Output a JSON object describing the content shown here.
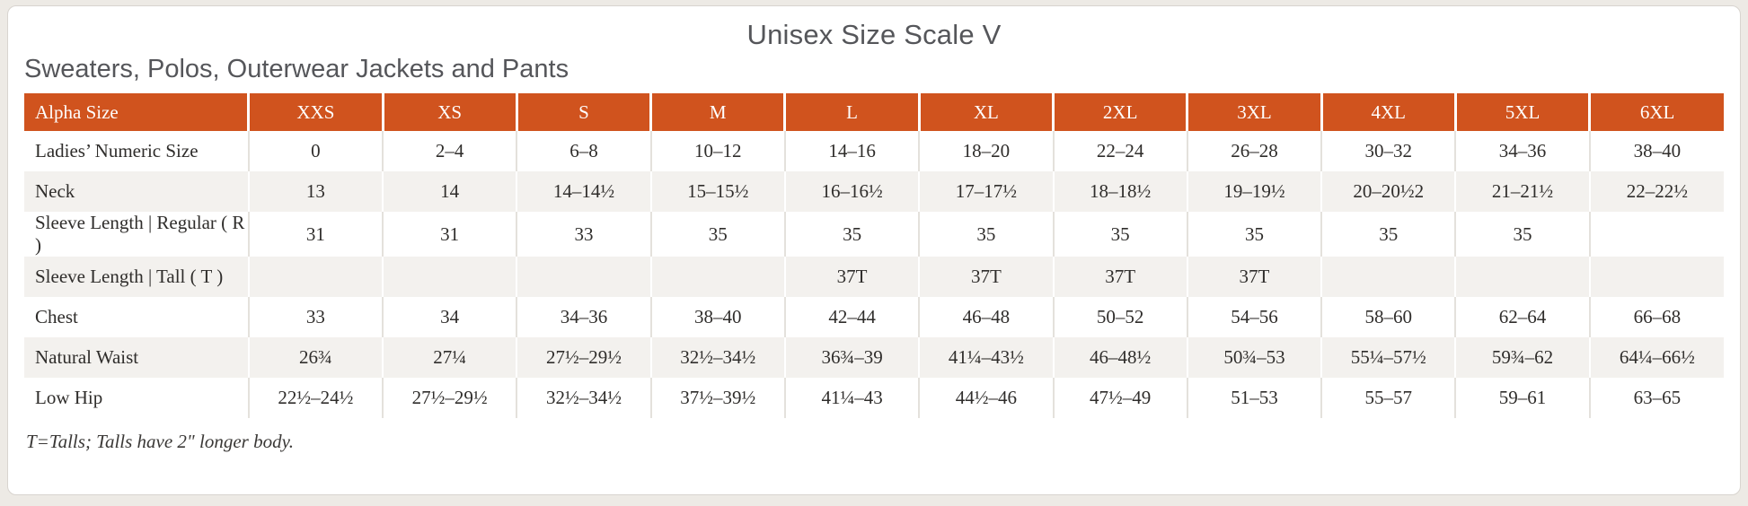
{
  "page": {
    "title": "Unisex Size Scale V",
    "subtitle": "Sweaters, Polos, Outerwear Jackets and Pants",
    "footnote": "T=Talls; Talls have 2\" longer body."
  },
  "colors": {
    "header_bg": "#D0531E",
    "alt_row_bg": "#F3F1EE",
    "title_text": "#55565A",
    "body_text": "#2F2D2B"
  },
  "table": {
    "columns": [
      "Alpha Size",
      "XXS",
      "XS",
      "S",
      "M",
      "L",
      "XL",
      "2XL",
      "3XL",
      "4XL",
      "5XL",
      "6XL"
    ],
    "rows": [
      {
        "label": "Ladies’ Numeric Size",
        "values": [
          "0",
          "2–4",
          "6–8",
          "10–12",
          "14–16",
          "18–20",
          "22–24",
          "26–28",
          "30–32",
          "34–36",
          "38–40"
        ]
      },
      {
        "label": "Neck",
        "values": [
          "13",
          "14",
          "14–14½",
          "15–15½",
          "16–16½",
          "17–17½",
          "18–18½",
          "19–19½",
          "20–20½2",
          "21–21½",
          "22–22½"
        ]
      },
      {
        "label": "Sleeve Length | Regular ( R )",
        "values": [
          "31",
          "31",
          "33",
          "35",
          "35",
          "35",
          "35",
          "35",
          "35",
          "35",
          ""
        ]
      },
      {
        "label": "Sleeve Length | Tall ( T )",
        "values": [
          "",
          "",
          "",
          "",
          "37T",
          "37T",
          "37T",
          "37T",
          "",
          "",
          ""
        ]
      },
      {
        "label": "Chest",
        "values": [
          "33",
          "34",
          "34–36",
          "38–40",
          "42–44",
          "46–48",
          "50–52",
          "54–56",
          "58–60",
          "62–64",
          "66–68"
        ]
      },
      {
        "label": "Natural Waist",
        "values": [
          "26¾",
          "27¼",
          "27½–29½",
          "32½–34½",
          "36¾–39",
          "41¼–43½",
          "46–48½",
          "50¾–53",
          "55¼–57½",
          "59¾–62",
          "64¼–66½"
        ]
      },
      {
        "label": "Low Hip",
        "values": [
          "22½–24½",
          "27½–29½",
          "32½–34½",
          "37½–39½",
          "41¼–43",
          "44½–46",
          "47½–49",
          "51–53",
          "55–57",
          "59–61",
          "63–65"
        ]
      }
    ]
  }
}
